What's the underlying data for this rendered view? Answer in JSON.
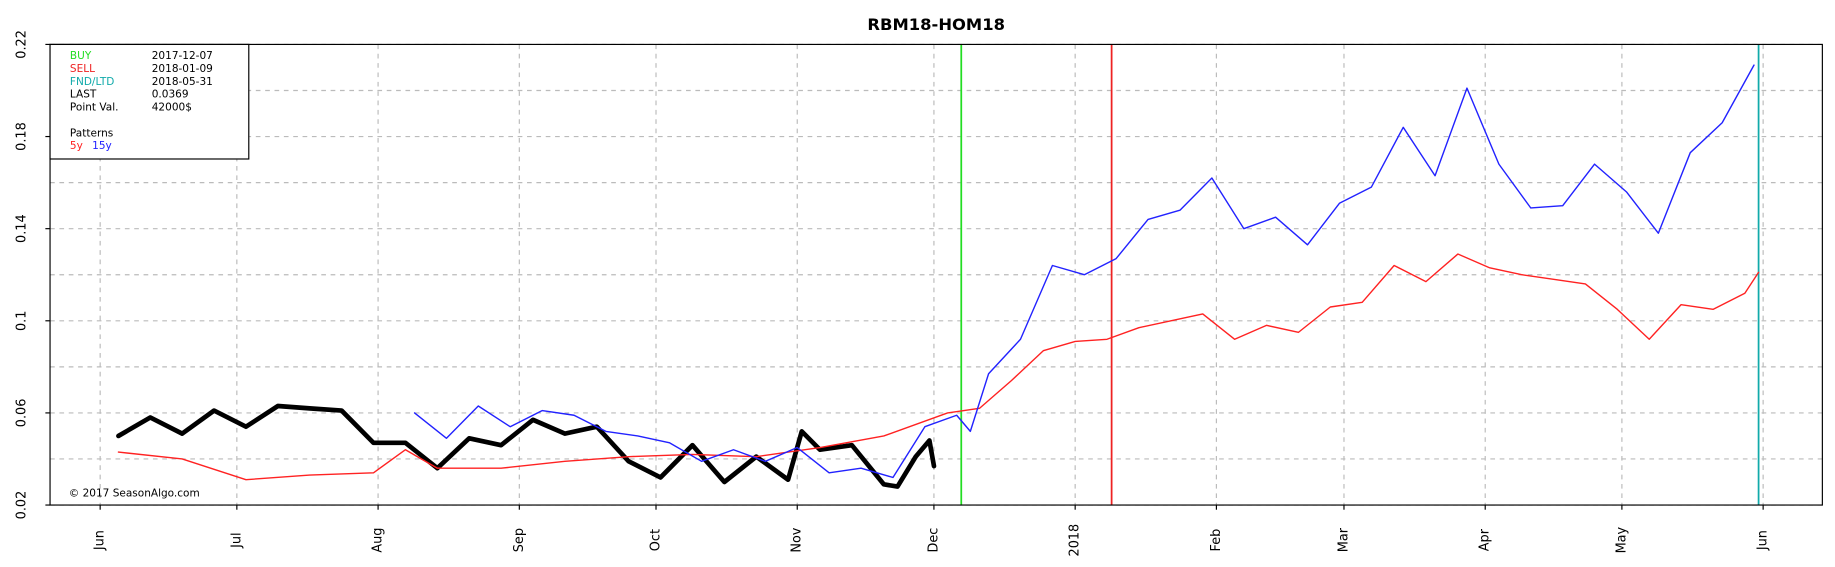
{
  "chart_data": {
    "type": "line",
    "title": "RBM18-HOM18",
    "xlim": [
      "2017-05-21",
      "2018-06-14"
    ],
    "ylim": [
      0.02,
      0.22
    ],
    "yticks": [
      0.02,
      0.06,
      0.1,
      0.14,
      0.18,
      0.22
    ],
    "minor_yticks": [
      0.04,
      0.08,
      0.12,
      0.16,
      0.2
    ],
    "xticks": [
      {
        "value": "2017-06-01",
        "label": "Jun"
      },
      {
        "value": "2017-07-01",
        "label": "Jul"
      },
      {
        "value": "2017-08-01",
        "label": "Aug"
      },
      {
        "value": "2017-09-01",
        "label": "Sep"
      },
      {
        "value": "2017-10-01",
        "label": "Oct"
      },
      {
        "value": "2017-11-01",
        "label": "Nov"
      },
      {
        "value": "2017-12-01",
        "label": "Dec"
      },
      {
        "value": "2018-01-01",
        "label": "2018"
      },
      {
        "value": "2018-02-01",
        "label": "Feb"
      },
      {
        "value": "2018-03-01",
        "label": "Mar"
      },
      {
        "value": "2018-04-01",
        "label": "Apr"
      },
      {
        "value": "2018-05-01",
        "label": "May"
      },
      {
        "value": "2018-06-01",
        "label": "Jun"
      }
    ],
    "grid": true,
    "events": [
      {
        "label": "BUY",
        "date": "2017-12-07",
        "color": "#22dd22"
      },
      {
        "label": "SELL",
        "date": "2018-01-09",
        "color": "#ee2222"
      },
      {
        "label": "FND/LTD",
        "date": "2018-05-31",
        "color": "#11aaaa"
      }
    ],
    "info": [
      {
        "label": "LAST",
        "value": "0.0369"
      },
      {
        "label": "Point Val.",
        "value": "42000$"
      }
    ],
    "patterns_label": "Patterns",
    "copyright": "© 2017 SeasonAlgo.com",
    "series": [
      {
        "color": "#000000",
        "width": 4,
        "x": [
          "2017-06-05",
          "2017-06-12",
          "2017-06-19",
          "2017-06-26",
          "2017-07-03",
          "2017-07-10",
          "2017-07-17",
          "2017-07-24",
          "2017-07-31",
          "2017-08-07",
          "2017-08-14",
          "2017-08-21",
          "2017-08-28",
          "2017-09-04",
          "2017-09-11",
          "2017-09-18",
          "2017-09-25",
          "2017-10-02",
          "2017-10-09",
          "2017-10-16",
          "2017-10-23",
          "2017-10-30",
          "2017-11-02",
          "2017-11-06",
          "2017-11-13",
          "2017-11-20",
          "2017-11-23",
          "2017-11-27",
          "2017-11-30",
          "2017-12-01"
        ],
        "values": [
          0.05,
          0.058,
          0.051,
          0.061,
          0.054,
          0.063,
          0.062,
          0.061,
          0.047,
          0.047,
          0.036,
          0.049,
          0.046,
          0.057,
          0.051,
          0.054,
          0.039,
          0.032,
          0.046,
          0.03,
          0.041,
          0.031,
          0.052,
          0.044,
          0.046,
          0.029,
          0.028,
          0.041,
          0.048,
          0.0369
        ]
      },
      {
        "name": "5y",
        "color": "#ff2222",
        "width": 1.2,
        "x": [
          "2017-06-05",
          "2017-06-19",
          "2017-07-03",
          "2017-07-17",
          "2017-07-31",
          "2017-08-07",
          "2017-08-14",
          "2017-08-28",
          "2017-09-11",
          "2017-09-25",
          "2017-10-09",
          "2017-10-23",
          "2017-11-06",
          "2017-11-20",
          "2017-12-04",
          "2017-12-11",
          "2017-12-18",
          "2017-12-25",
          "2018-01-01",
          "2018-01-08",
          "2018-01-15",
          "2018-01-22",
          "2018-01-29",
          "2018-02-05",
          "2018-02-12",
          "2018-02-19",
          "2018-02-26",
          "2018-03-05",
          "2018-03-12",
          "2018-03-19",
          "2018-03-26",
          "2018-04-02",
          "2018-04-09",
          "2018-04-16",
          "2018-04-23",
          "2018-04-30",
          "2018-05-07",
          "2018-05-14",
          "2018-05-21",
          "2018-05-28",
          "2018-05-31"
        ],
        "values": [
          0.043,
          0.04,
          0.031,
          0.033,
          0.034,
          0.044,
          0.036,
          0.036,
          0.039,
          0.041,
          0.042,
          0.041,
          0.045,
          0.05,
          0.06,
          0.062,
          0.074,
          0.087,
          0.091,
          0.092,
          0.097,
          0.1,
          0.103,
          0.092,
          0.098,
          0.095,
          0.106,
          0.108,
          0.124,
          0.117,
          0.129,
          0.123,
          0.12,
          0.118,
          0.116,
          0.105,
          0.092,
          0.107,
          0.105,
          0.112,
          0.121
        ]
      },
      {
        "name": "15y",
        "color": "#2222ff",
        "width": 1.2,
        "x": [
          "2017-08-09",
          "2017-08-16",
          "2017-08-23",
          "2017-08-30",
          "2017-09-06",
          "2017-09-13",
          "2017-09-20",
          "2017-09-27",
          "2017-10-04",
          "2017-10-11",
          "2017-10-18",
          "2017-10-25",
          "2017-11-01",
          "2017-11-08",
          "2017-11-15",
          "2017-11-22",
          "2017-11-29",
          "2017-12-06",
          "2017-12-09",
          "2017-12-13",
          "2017-12-20",
          "2017-12-27",
          "2018-01-03",
          "2018-01-10",
          "2018-01-17",
          "2018-01-24",
          "2018-01-31",
          "2018-02-07",
          "2018-02-14",
          "2018-02-21",
          "2018-02-28",
          "2018-03-07",
          "2018-03-14",
          "2018-03-21",
          "2018-03-28",
          "2018-04-04",
          "2018-04-11",
          "2018-04-18",
          "2018-04-25",
          "2018-05-02",
          "2018-05-09",
          "2018-05-16",
          "2018-05-23",
          "2018-05-30"
        ],
        "values": [
          0.06,
          0.049,
          0.063,
          0.054,
          0.061,
          0.059,
          0.052,
          0.05,
          0.047,
          0.039,
          0.044,
          0.039,
          0.045,
          0.034,
          0.036,
          0.032,
          0.054,
          0.059,
          0.052,
          0.077,
          0.092,
          0.124,
          0.12,
          0.127,
          0.144,
          0.148,
          0.162,
          0.14,
          0.145,
          0.133,
          0.151,
          0.158,
          0.184,
          0.163,
          0.201,
          0.168,
          0.149,
          0.15,
          0.168,
          0.156,
          0.138,
          0.173,
          0.186,
          0.211
        ]
      }
    ]
  }
}
